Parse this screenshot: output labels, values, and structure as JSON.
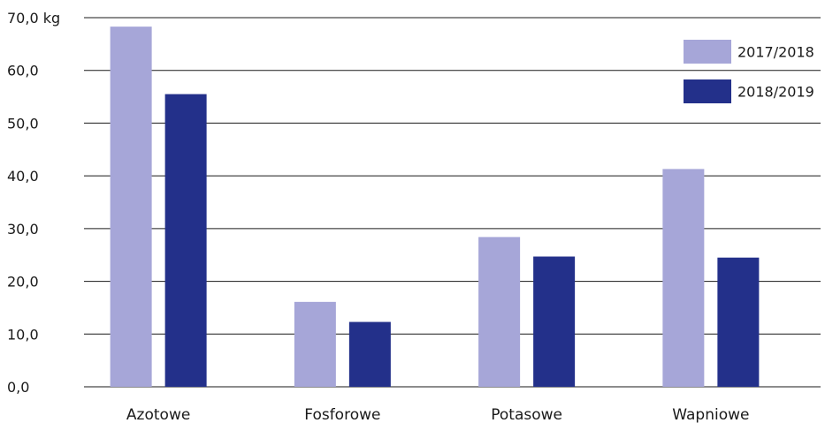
{
  "chart_data": {
    "type": "bar",
    "categories": [
      "Azotowe",
      "Fosforowe",
      "Potasowe",
      "Wapniowe"
    ],
    "series": [
      {
        "name": "2017/2018",
        "values": [
          68.3,
          16.1,
          28.4,
          41.3
        ],
        "color": "#a6a6d8"
      },
      {
        "name": "2018/2019",
        "values": [
          55.5,
          12.3,
          24.7,
          24.5
        ],
        "color": "#23308a"
      }
    ],
    "title": "",
    "xlabel": "",
    "ylabel": "",
    "ylim": [
      0,
      70
    ],
    "yticks": [
      "0,0",
      "10,0",
      "20,0",
      "30,0",
      "40,0",
      "50,0",
      "60,0",
      "70,0 kg"
    ],
    "grid": true,
    "legend_position": "top-right"
  }
}
